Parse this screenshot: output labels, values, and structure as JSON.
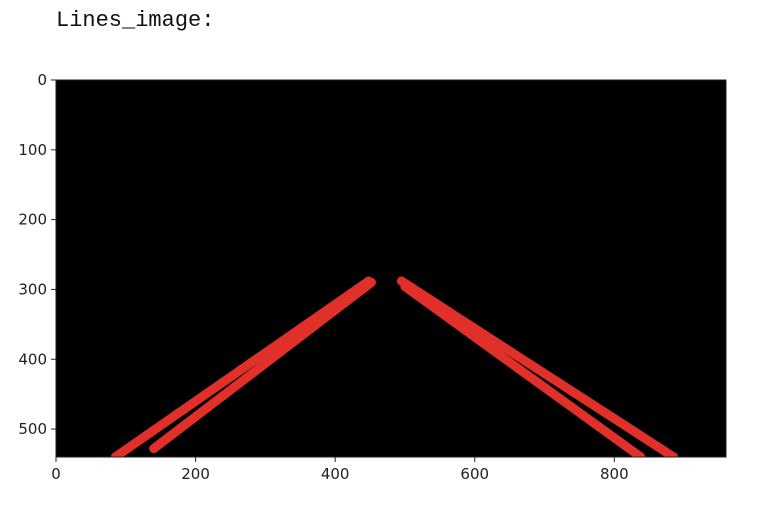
{
  "output_label": "Lines_image:",
  "colors": {
    "image_background": "#000000",
    "lane_line": "#e1302a",
    "axis": "#222222"
  },
  "chart_data": {
    "type": "image",
    "title": "",
    "xlabel": "",
    "ylabel": "",
    "xlim": [
      0,
      960
    ],
    "ylim": [
      540,
      0
    ],
    "x_ticks": [
      0,
      200,
      400,
      600,
      800
    ],
    "y_ticks": [
      0,
      100,
      200,
      300,
      400,
      500
    ],
    "x_tick_labels": [
      "0",
      "200",
      "400",
      "600",
      "800"
    ],
    "y_tick_labels": [
      "0",
      "100",
      "200",
      "300",
      "400",
      "500"
    ],
    "lines": [
      {
        "name": "left-lane-line-outer",
        "x1": 85,
        "y1": 540,
        "x2": 448,
        "y2": 288
      },
      {
        "name": "left-lane-line-inner",
        "x1": 140,
        "y1": 528,
        "x2": 452,
        "y2": 290
      },
      {
        "name": "right-lane-line-outer",
        "x1": 495,
        "y1": 288,
        "x2": 885,
        "y2": 540
      },
      {
        "name": "right-lane-line-inner",
        "x1": 500,
        "y1": 296,
        "x2": 838,
        "y2": 540
      }
    ]
  }
}
